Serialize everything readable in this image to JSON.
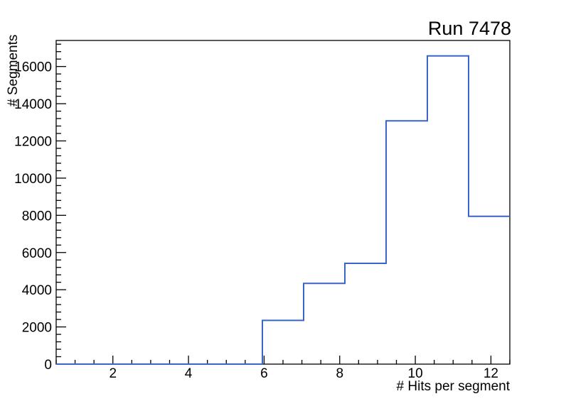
{
  "chart_data": {
    "type": "histogram",
    "style": "step-outline",
    "title": "Run 7478",
    "xlabel": "# Hits per segment",
    "ylabel": "# Segments",
    "xlim": [
      0.5,
      12.5
    ],
    "ylim": [
      0,
      17400
    ],
    "n_bins": 11,
    "bin_edges": [
      0.5,
      1.591,
      2.682,
      3.773,
      4.864,
      5.955,
      7.045,
      8.136,
      9.227,
      10.318,
      11.409,
      12.5
    ],
    "values": [
      0,
      0,
      0,
      0,
      0,
      2350,
      4340,
      5420,
      13080,
      16570,
      7950
    ],
    "x_major_ticks": [
      2,
      4,
      6,
      8,
      10,
      12
    ],
    "x_minor_step": 0.5,
    "y_major_step": 2000,
    "y_minor_step": 400,
    "y_tick_labels": [
      "0",
      "2000",
      "4000",
      "6000",
      "8000",
      "10000",
      "12000",
      "14000",
      "16000"
    ],
    "grid": false,
    "legend": null,
    "colors": {
      "line": "#3a64c8",
      "axis": "#000000",
      "background": "#ffffff",
      "text": "#000000"
    }
  }
}
